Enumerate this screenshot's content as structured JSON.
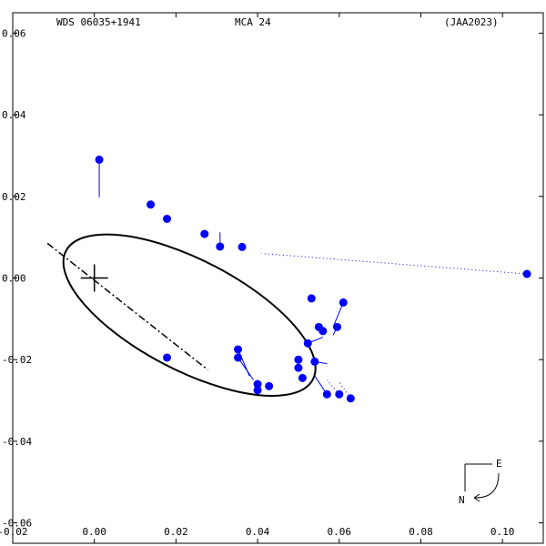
{
  "header": {
    "left": "WDS 06035+1941",
    "center": "MCA  24",
    "right": "(JAA2023)"
  },
  "compass": {
    "east": "E",
    "north": "N"
  },
  "chart_data": {
    "type": "scatter",
    "xlim": [
      -0.02,
      0.11
    ],
    "ylim": [
      -0.065,
      0.065
    ],
    "x_ticks": [
      {
        "v": -0.02,
        "label": "-0.02"
      },
      {
        "v": 0.0,
        "label": "0.00"
      },
      {
        "v": 0.02,
        "label": "0.02"
      },
      {
        "v": 0.04,
        "label": "0.04"
      },
      {
        "v": 0.06,
        "label": "0.06"
      },
      {
        "v": 0.08,
        "label": "0.08"
      },
      {
        "v": 0.1,
        "label": "0.10"
      }
    ],
    "y_ticks": [
      {
        "v": 0.06,
        "label": "0.06"
      },
      {
        "v": 0.04,
        "label": "0.04"
      },
      {
        "v": 0.02,
        "label": "0.02"
      },
      {
        "v": 0.0,
        "label": "0.00"
      },
      {
        "v": -0.02,
        "label": "-0.02"
      },
      {
        "v": -0.04,
        "label": "-0.04"
      },
      {
        "v": -0.06,
        "label": "-0.06"
      }
    ],
    "primary": [
      0,
      0
    ],
    "orbit": {
      "cx": 0.0233,
      "cy": -0.0091,
      "a": 0.0341,
      "b": 0.0135,
      "rotation_deg": -27.5
    },
    "line_of_nodes": [
      [
        -0.0115,
        0.0085
      ],
      [
        0.0278,
        -0.0225
      ]
    ],
    "observations": [
      {
        "obs": [
          0.0012,
          0.029
        ],
        "calc": [
          0.0012,
          0.0198
        ]
      },
      {
        "obs": [
          0.0138,
          0.018
        ],
        "calc": [
          0.0138,
          0.018
        ]
      },
      {
        "obs": [
          0.0178,
          0.0145
        ],
        "calc": [
          0.0178,
          0.0145
        ]
      },
      {
        "obs": [
          0.027,
          0.0108
        ],
        "calc": [
          0.027,
          0.0108
        ]
      },
      {
        "obs": [
          0.0308,
          0.0077
        ],
        "calc": [
          0.0308,
          0.0112
        ]
      },
      {
        "obs": [
          0.0362,
          0.0076
        ],
        "calc": [
          0.0362,
          0.0076
        ]
      },
      {
        "obs": [
          0.106,
          0.001
        ],
        "calc": [
          0.041,
          0.006
        ],
        "dotted": true
      },
      {
        "obs": [
          0.0532,
          -0.005
        ],
        "calc": [
          0.0532,
          -0.005
        ]
      },
      {
        "obs": [
          0.061,
          -0.006
        ],
        "calc": [
          0.0585,
          -0.012
        ]
      },
      {
        "obs": [
          0.055,
          -0.012
        ],
        "calc": [
          0.056,
          -0.0125
        ]
      },
      {
        "obs": [
          0.056,
          -0.013
        ],
        "calc": [
          0.0565,
          -0.0128
        ]
      },
      {
        "obs": [
          0.0595,
          -0.012
        ],
        "calc": [
          0.0585,
          -0.014
        ]
      },
      {
        "obs": [
          0.0523,
          -0.016
        ],
        "calc": [
          0.056,
          -0.0145
        ]
      },
      {
        "obs": [
          0.0178,
          -0.0195
        ],
        "calc": [
          0.0178,
          -0.0195
        ]
      },
      {
        "obs": [
          0.0352,
          -0.0175
        ],
        "calc": [
          0.038,
          -0.024
        ]
      },
      {
        "obs": [
          0.0352,
          -0.0195
        ],
        "calc": [
          0.039,
          -0.025
        ]
      },
      {
        "obs": [
          0.05,
          -0.02
        ],
        "calc": [
          0.05,
          -0.02
        ]
      },
      {
        "obs": [
          0.054,
          -0.0205
        ],
        "calc": [
          0.057,
          -0.021
        ]
      },
      {
        "obs": [
          0.05,
          -0.022
        ],
        "calc": [
          0.05,
          -0.022
        ]
      },
      {
        "obs": [
          0.051,
          -0.0245
        ],
        "calc": [
          0.051,
          -0.024
        ]
      },
      {
        "obs": [
          0.04,
          -0.026
        ],
        "calc": [
          0.04,
          -0.025
        ]
      },
      {
        "obs": [
          0.04,
          -0.0275
        ],
        "calc": [
          0.04,
          -0.0255
        ]
      },
      {
        "obs": [
          0.0428,
          -0.0265
        ],
        "calc": [
          0.0428,
          -0.0255
        ]
      },
      {
        "obs": [
          0.057,
          -0.0285
        ],
        "calc": [
          0.054,
          -0.024
        ]
      },
      {
        "obs": [
          0.06,
          -0.0285
        ],
        "calc": [
          0.057,
          -0.025
        ],
        "dotted": true
      },
      {
        "obs": [
          0.0628,
          -0.0295
        ],
        "calc": [
          0.06,
          -0.0255
        ],
        "dotted": true
      }
    ]
  }
}
